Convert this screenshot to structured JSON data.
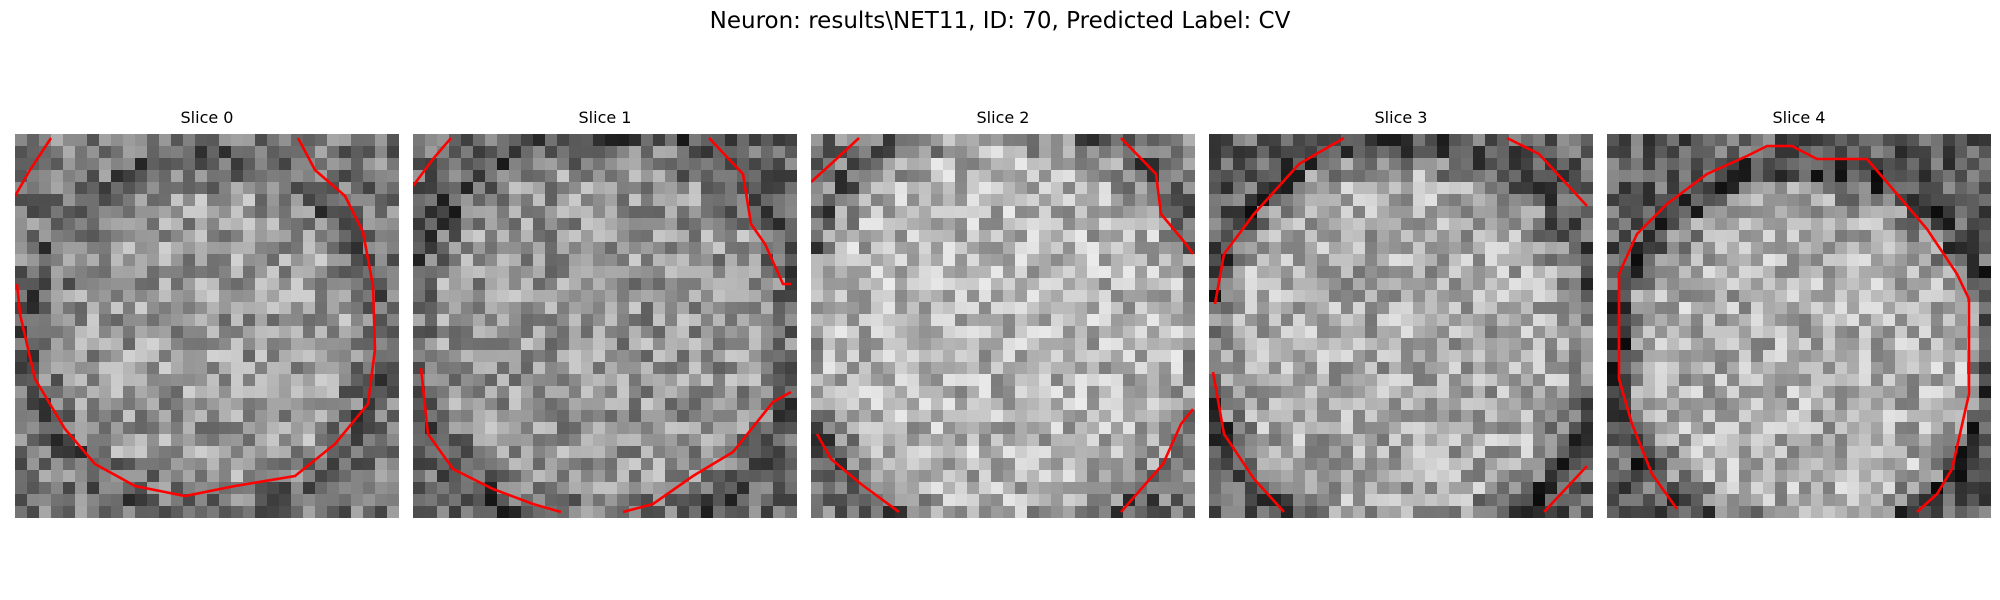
{
  "figure": {
    "title": "Neuron: results\\NET11, ID: 70, Predicted Label: CV"
  },
  "panels": [
    {
      "title": "Slice 0"
    },
    {
      "title": "Slice 1"
    },
    {
      "title": "Slice 2"
    },
    {
      "title": "Slice 3"
    },
    {
      "title": "Slice 4"
    }
  ],
  "style": {
    "contour_color": "#ff0000",
    "colormap": "gray"
  }
}
